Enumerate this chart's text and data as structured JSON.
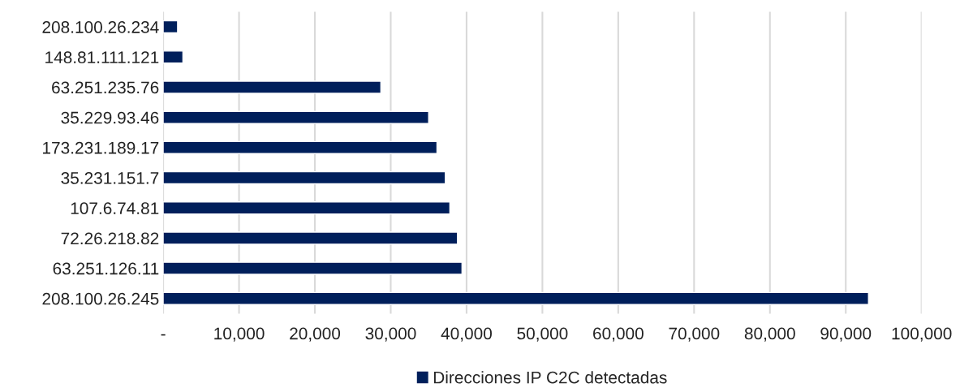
{
  "chart_data": {
    "type": "bar",
    "orientation": "horizontal",
    "categories": [
      "208.100.26.234",
      "148.81.111.121",
      "63.251.235.76",
      "35.229.93.46",
      "173.231.189.17",
      "35.231.151.7",
      "107.6.74.81",
      "72.26.218.82",
      "63.251.126.11",
      "208.100.26.245"
    ],
    "series": [
      {
        "name": "Direcciones IP C2C detectadas",
        "color": "#001f5b",
        "values": [
          1900,
          2600,
          28700,
          35000,
          36100,
          37200,
          37800,
          38800,
          39400,
          93000
        ]
      }
    ],
    "xlim": [
      0,
      100000
    ],
    "xticks": [
      {
        "value": 0,
        "label": "-"
      },
      {
        "value": 10000,
        "label": "10,000"
      },
      {
        "value": 20000,
        "label": "20,000"
      },
      {
        "value": 30000,
        "label": "30,000"
      },
      {
        "value": 40000,
        "label": "40,000"
      },
      {
        "value": 50000,
        "label": "50,000"
      },
      {
        "value": 60000,
        "label": "60,000"
      },
      {
        "value": 70000,
        "label": "70,000"
      },
      {
        "value": 80000,
        "label": "80,000"
      },
      {
        "value": 90000,
        "label": "90,000"
      },
      {
        "value": 100000,
        "label": "100,000"
      }
    ],
    "grid": "x",
    "legend": "bottom"
  }
}
